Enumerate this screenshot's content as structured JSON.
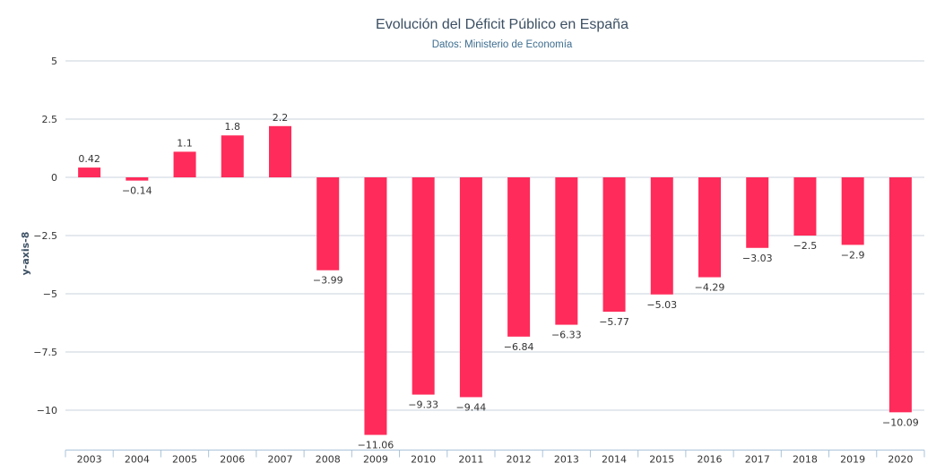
{
  "chart_data": {
    "type": "bar",
    "title": "Evolución del Déficit Público en España",
    "subtitle": "Datos: Ministerio de Economía",
    "ylabel": "y-axis-8",
    "xlabel": "",
    "ylim": [
      -11.06,
      5
    ],
    "yticks": [
      5,
      2.5,
      0,
      -2.5,
      -5,
      -7.5,
      -10
    ],
    "ytick_labels": [
      "5",
      "2.5",
      "0",
      "−2.5",
      "−5",
      "−7.5",
      "−10"
    ],
    "categories": [
      "2003",
      "2004",
      "2005",
      "2006",
      "2007",
      "2008",
      "2009",
      "2010",
      "2011",
      "2012",
      "2013",
      "2014",
      "2015",
      "2016",
      "2017",
      "2018",
      "2019",
      "2020"
    ],
    "values": [
      0.42,
      -0.14,
      1.1,
      1.8,
      2.2,
      -3.99,
      -11.06,
      -9.33,
      -9.44,
      -6.84,
      -6.33,
      -5.77,
      -5.03,
      -4.29,
      -3.03,
      -2.5,
      -2.9,
      -10.09
    ],
    "value_labels": [
      "0.42",
      "−0.14",
      "1.1",
      "1.8",
      "2.2",
      "−3.99",
      "−11.06",
      "−9.33",
      "−9.44",
      "−6.84",
      "−6.33",
      "−5.77",
      "−5.03",
      "−4.29",
      "−3.03",
      "−2.5",
      "−2.9",
      "−10.09"
    ],
    "bar_color": "#ff2b5a",
    "grid": true
  }
}
